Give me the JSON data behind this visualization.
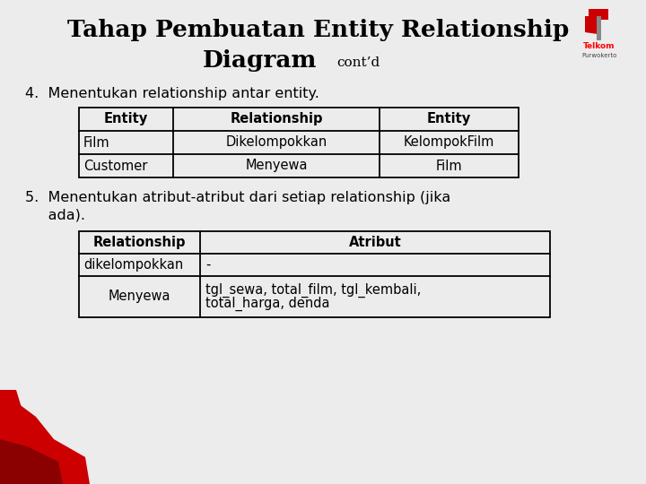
{
  "title_line1": "Tahap Pembuatan Entity Relationship",
  "title_line2": "Diagram",
  "title_contd": "cont’d",
  "bg_color": "#ececec",
  "title_color": "#000000",
  "point4_text": "4.  Menentukan relationship antar entity.",
  "point5_line1": "5.  Menentukan atribut-atribut dari setiap relationship (jika",
  "point5_line2": "     ada).",
  "table1_headers": [
    "Entity",
    "Relationship",
    "Entity"
  ],
  "table1_rows": [
    [
      "Film",
      "Dikelompokkan",
      "KelompokFilm"
    ],
    [
      "Customer",
      "Menyewa",
      "Film"
    ]
  ],
  "table2_headers": [
    "Relationship",
    "Atribut"
  ],
  "table2_rows": [
    [
      "dikelompokkan",
      "-"
    ],
    [
      "Menyewa",
      "tgl_sewa, total_film, tgl_kembali,\ntotal_harga, denda"
    ]
  ],
  "red_color": "#cc0000",
  "red_dark": "#8b0000",
  "table_border_color": "#000000"
}
